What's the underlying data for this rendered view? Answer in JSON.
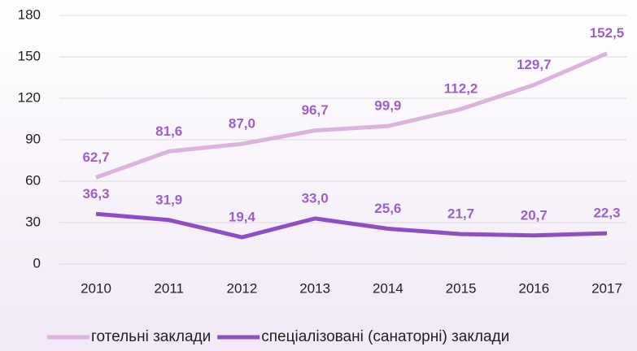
{
  "chart_data": {
    "type": "line",
    "categories": [
      "2010",
      "2011",
      "2012",
      "2013",
      "2014",
      "2015",
      "2016",
      "2017"
    ],
    "series": [
      {
        "name": "готельні заклади",
        "color": "#dcb3dc",
        "values": [
          62.7,
          81.6,
          87.0,
          96.7,
          99.9,
          112.2,
          129.7,
          152.5
        ],
        "value_labels": [
          "62,7",
          "81,6",
          "87,0",
          "96,7",
          "99,9",
          "112,2",
          "129,7",
          "152,5"
        ]
      },
      {
        "name": "спеціалізовані (санаторні) заклади",
        "color": "#8e4fc6",
        "values": [
          36.3,
          31.9,
          19.4,
          33.0,
          25.6,
          21.7,
          20.7,
          22.3
        ],
        "value_labels": [
          "36,3",
          "31,9",
          "19,4",
          "33,0",
          "25,6",
          "21,7",
          "20,7",
          "22,3"
        ]
      }
    ],
    "ylim": [
      0,
      180
    ],
    "yticks": [
      0,
      30,
      60,
      90,
      120,
      150,
      180
    ],
    "grid": true
  }
}
